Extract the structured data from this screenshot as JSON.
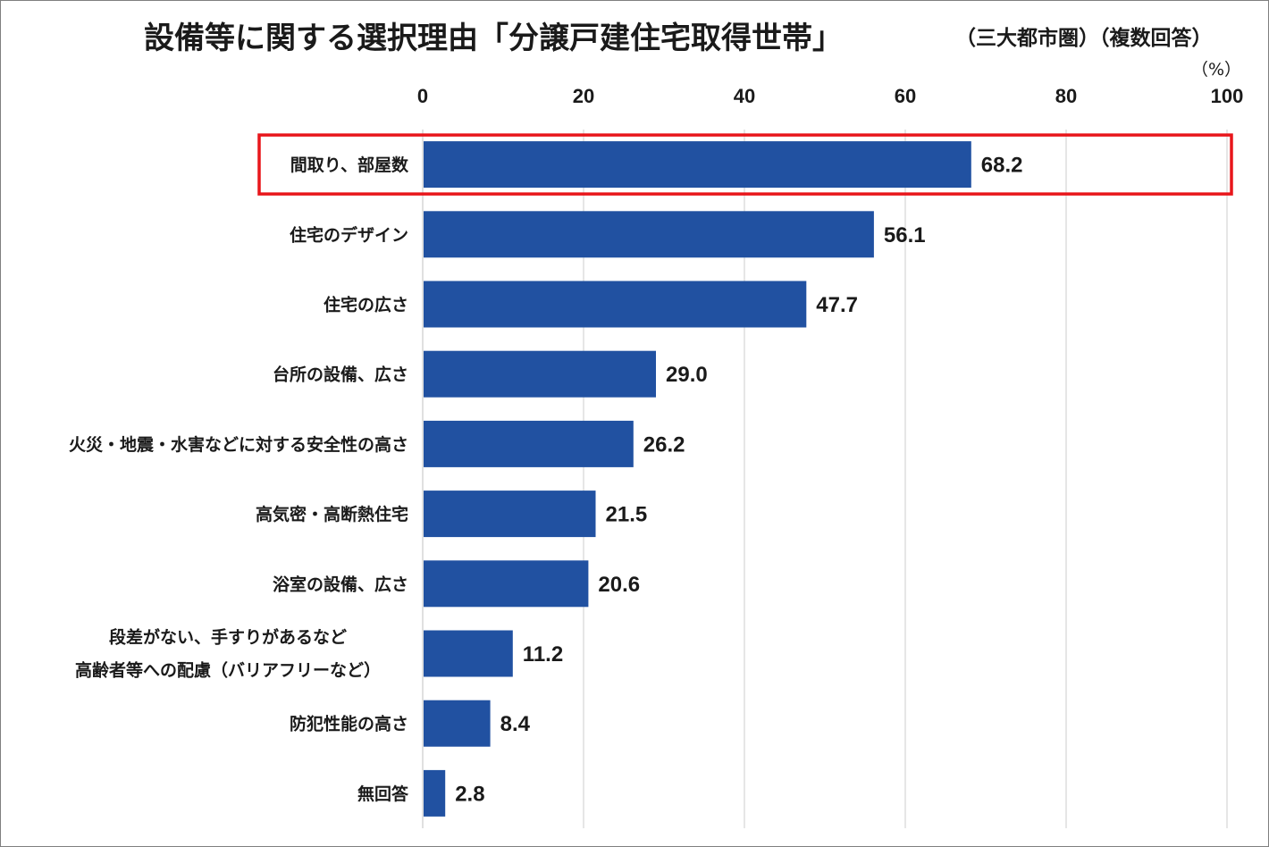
{
  "chart_data": {
    "type": "bar",
    "orientation": "horizontal",
    "title": "設備等に関する選択理由「分譲戸建住宅取得世帯」",
    "subtitle": "（三大都市圏）（複数回答）",
    "unit_label": "（%）",
    "xlim": [
      0,
      100
    ],
    "ticks": [
      0,
      20,
      40,
      60,
      80,
      100
    ],
    "grid": "vertical",
    "categories": [
      "間取り、部屋数",
      "住宅のデザイン",
      "住宅の広さ",
      "台所の設備、広さ",
      "火災・地震・水害などに対する安全性の高さ",
      "高気密・高断熱住宅",
      "浴室の設備、広さ",
      "段差がない、手すりがあるなど\n高齢者等への配慮（バリアフリーなど）",
      "防犯性能の高さ",
      "無回答"
    ],
    "values": [
      68.2,
      56.1,
      47.7,
      29.0,
      26.2,
      21.5,
      20.6,
      11.2,
      8.4,
      2.8
    ],
    "value_labels": [
      "68.2",
      "56.1",
      "47.7",
      "29.0",
      "26.2",
      "21.5",
      "20.6",
      "11.2",
      "8.4",
      "2.8"
    ],
    "highlight_index": 0
  },
  "colors": {
    "bar": "#2151a1",
    "grid": "#d9d9d9",
    "highlight_border": "#e8161b",
    "frame": "#7f7f7f"
  }
}
